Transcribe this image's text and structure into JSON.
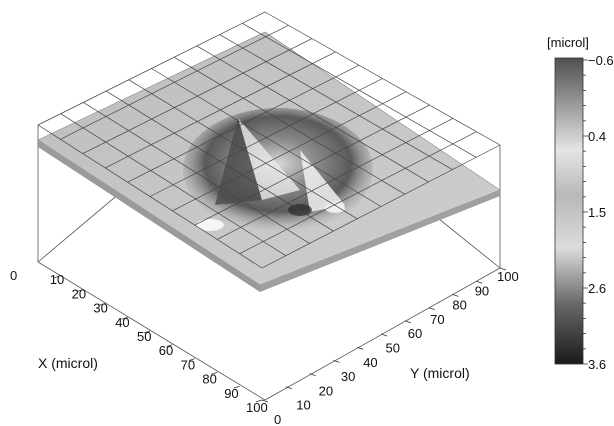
{
  "chart_data": {
    "type": "surface3d",
    "x_axis": {
      "label": "X (microl)",
      "ticks": [
        "0",
        "10",
        "20",
        "30",
        "40",
        "50",
        "60",
        "70",
        "80",
        "90",
        "100"
      ]
    },
    "y_axis": {
      "label": "Y (microl)",
      "ticks": [
        "0",
        "10",
        "20",
        "30",
        "40",
        "50",
        "60",
        "70",
        "80",
        "90",
        "100"
      ]
    },
    "colorbar": {
      "unit": "[microl]",
      "ticks": [
        "−0.6",
        "0.4",
        "1.5",
        "2.6",
        "3.6"
      ],
      "range": [
        -0.6,
        3.6
      ],
      "colormap": "grayscale"
    },
    "mesh_grid": true,
    "surface": "flat plane with a raised dome-shaped feature near the center"
  }
}
